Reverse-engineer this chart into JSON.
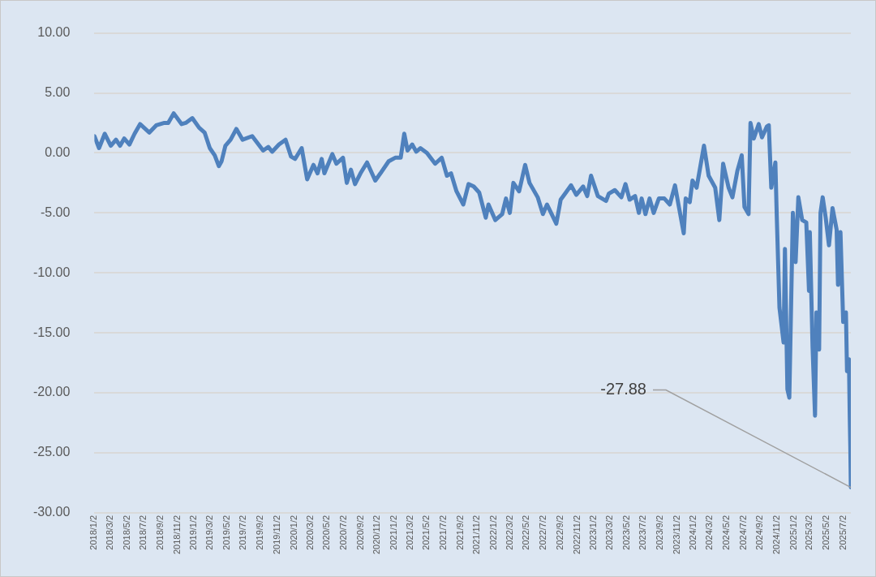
{
  "chart_data": {
    "type": "line",
    "grid": "y",
    "x": [
      "2018-01-02",
      "2018-01-19",
      "2018-02-09",
      "2018-03-03",
      "2018-03-22",
      "2018-04-06",
      "2018-04-21",
      "2018-05-10",
      "2018-05-29",
      "2018-06-18",
      "2018-07-22",
      "2018-08-16",
      "2018-09-15",
      "2018-09-29",
      "2018-10-19",
      "2018-11-17",
      "2018-12-02",
      "2018-12-26",
      "2019-01-20",
      "2019-02-09",
      "2019-02-28",
      "2019-03-18",
      "2019-04-02",
      "2019-04-12",
      "2019-04-26",
      "2019-05-15",
      "2019-06-05",
      "2019-06-28",
      "2019-08-02",
      "2019-09-11",
      "2019-09-30",
      "2019-10-14",
      "2019-11-08",
      "2019-12-02",
      "2019-12-22",
      "2020-01-06",
      "2020-01-30",
      "2020-02-19",
      "2020-03-13",
      "2020-03-28",
      "2020-04-12",
      "2020-04-22",
      "2020-05-21",
      "2020-06-05",
      "2020-06-29",
      "2020-07-13",
      "2020-07-28",
      "2020-08-12",
      "2020-09-01",
      "2020-09-25",
      "2020-10-25",
      "2020-11-13",
      "2020-12-13",
      "2021-01-06",
      "2021-01-26",
      "2021-02-08",
      "2021-02-20",
      "2021-03-09",
      "2021-03-24",
      "2021-04-08",
      "2021-05-02",
      "2021-06-01",
      "2021-06-25",
      "2021-07-14",
      "2021-07-29",
      "2021-08-18",
      "2021-09-12",
      "2021-10-01",
      "2021-10-20",
      "2021-11-09",
      "2021-12-03",
      "2021-12-13",
      "2022-01-07",
      "2022-02-01",
      "2022-02-15",
      "2022-03-01",
      "2022-03-14",
      "2022-04-04",
      "2022-04-26",
      "2022-05-12",
      "2022-06-11",
      "2022-06-30",
      "2022-07-15",
      "2022-08-18",
      "2022-09-03",
      "2022-09-22",
      "2022-10-11",
      "2022-10-30",
      "2022-11-24",
      "2022-12-09",
      "2022-12-23",
      "2023-01-17",
      "2023-02-16",
      "2023-02-26",
      "2023-03-20",
      "2023-04-13",
      "2023-04-28",
      "2023-05-13",
      "2023-06-02",
      "2023-06-16",
      "2023-06-26",
      "2023-07-10",
      "2023-07-25",
      "2023-08-09",
      "2023-08-28",
      "2023-09-17",
      "2023-10-07",
      "2023-10-26",
      "2023-11-10",
      "2023-11-27",
      "2023-12-04",
      "2023-12-19",
      "2023-12-29",
      "2024-01-13",
      "2024-02-09",
      "2024-02-26",
      "2024-03-21",
      "2024-04-05",
      "2024-04-19",
      "2024-05-09",
      "2024-05-23",
      "2024-06-10",
      "2024-06-26",
      "2024-07-06",
      "2024-07-21",
      "2024-07-28",
      "2024-08-09",
      "2024-08-27",
      "2024-09-08",
      "2024-09-26",
      "2024-10-03",
      "2024-10-12",
      "2024-10-27",
      "2024-11-01",
      "2024-11-11",
      "2024-11-26",
      "2024-12-01",
      "2024-12-10",
      "2024-12-17",
      "2024-12-30",
      "2025-01-09",
      "2025-01-19",
      "2025-02-02",
      "2025-02-17",
      "2025-02-27",
      "2025-03-02",
      "2025-03-12",
      "2025-03-21",
      "2025-03-26",
      "2025-04-05",
      "2025-04-10",
      "2025-04-18",
      "2025-04-29",
      "2025-05-11",
      "2025-05-24",
      "2025-06-08",
      "2025-06-13",
      "2025-06-22",
      "2025-07-02",
      "2025-07-12",
      "2025-07-16",
      "2025-07-23",
      "2025-07-26",
      "2025-07-28",
      "2025-07-30"
    ],
    "series": [
      {
        "color": "#4f81bd",
        "values": [
          1.4,
          0.4,
          1.6,
          0.6,
          1.1,
          0.6,
          1.2,
          0.7,
          1.6,
          2.4,
          1.7,
          2.3,
          2.5,
          2.5,
          3.3,
          2.4,
          2.5,
          2.9,
          2.1,
          1.7,
          0.4,
          -0.2,
          -1.1,
          -0.7,
          0.6,
          1.1,
          2.0,
          1.1,
          1.4,
          0.2,
          0.5,
          0.1,
          0.7,
          1.1,
          -0.3,
          -0.5,
          0.4,
          -2.2,
          -1.0,
          -1.7,
          -0.5,
          -1.7,
          -0.1,
          -0.9,
          -0.4,
          -2.5,
          -1.4,
          -2.6,
          -1.7,
          -0.8,
          -2.3,
          -1.7,
          -0.7,
          -0.4,
          -0.4,
          1.6,
          0.2,
          0.7,
          0.1,
          0.4,
          0.0,
          -0.9,
          -0.4,
          -1.9,
          -1.7,
          -3.2,
          -4.3,
          -2.6,
          -2.8,
          -3.3,
          -5.4,
          -4.3,
          -5.6,
          -5.1,
          -3.8,
          -5.0,
          -2.5,
          -3.2,
          -1.0,
          -2.5,
          -3.7,
          -5.1,
          -4.3,
          -5.9,
          -3.9,
          -3.3,
          -2.7,
          -3.5,
          -2.8,
          -3.6,
          -1.9,
          -3.6,
          -4.0,
          -3.4,
          -3.1,
          -3.7,
          -2.6,
          -3.9,
          -3.6,
          -5.0,
          -3.8,
          -5.1,
          -3.8,
          -5.0,
          -3.8,
          -3.8,
          -4.3,
          -2.7,
          -4.6,
          -6.7,
          -3.8,
          -4.1,
          -2.3,
          -2.9,
          0.6,
          -1.9,
          -2.9,
          -5.6,
          -0.9,
          -2.9,
          -3.7,
          -1.5,
          -0.2,
          -4.5,
          -5.1,
          2.5,
          1.2,
          2.4,
          1.3,
          2.2,
          2.3,
          -2.9,
          -0.8,
          -5.2,
          -12.9,
          -15.8,
          -8.0,
          -19.7,
          -20.4,
          -5.0,
          -9.1,
          -3.7,
          -5.6,
          -5.8,
          -11.5,
          -6.6,
          -16.2,
          -21.9,
          -13.3,
          -16.4,
          -5.0,
          -3.7,
          -5.4,
          -7.7,
          -4.6,
          -6.4,
          -11.0,
          -6.6,
          -14.1,
          -13.3,
          -18.2,
          -17.2,
          -22.0,
          -24.5,
          -27.88
        ]
      }
    ],
    "xlim": [
      "2018-01-02",
      "2025-07-30"
    ],
    "xticks": [
      {
        "value": "2018-01-02",
        "label": "2018/1/2"
      },
      {
        "value": "2018-03-02",
        "label": "2018/3/2"
      },
      {
        "value": "2018-05-02",
        "label": "2018/5/2"
      },
      {
        "value": "2018-07-02",
        "label": "2018/7/2"
      },
      {
        "value": "2018-09-02",
        "label": "2018/9/2"
      },
      {
        "value": "2018-11-02",
        "label": "2018/11/2"
      },
      {
        "value": "2019-01-02",
        "label": "2019/1/2"
      },
      {
        "value": "2019-03-02",
        "label": "2019/3/2"
      },
      {
        "value": "2019-05-02",
        "label": "2019/5/2"
      },
      {
        "value": "2019-07-02",
        "label": "2019/7/2"
      },
      {
        "value": "2019-09-02",
        "label": "2019/9/2"
      },
      {
        "value": "2019-11-02",
        "label": "2019/11/2"
      },
      {
        "value": "2020-01-02",
        "label": "2020/1/2"
      },
      {
        "value": "2020-03-02",
        "label": "2020/3/2"
      },
      {
        "value": "2020-05-02",
        "label": "2020/5/2"
      },
      {
        "value": "2020-07-02",
        "label": "2020/7/2"
      },
      {
        "value": "2020-09-02",
        "label": "2020/9/2"
      },
      {
        "value": "2020-11-02",
        "label": "2020/11/2"
      },
      {
        "value": "2021-01-02",
        "label": "2021/1/2"
      },
      {
        "value": "2021-03-02",
        "label": "2021/3/2"
      },
      {
        "value": "2021-05-02",
        "label": "2021/5/2"
      },
      {
        "value": "2021-07-02",
        "label": "2021/7/2"
      },
      {
        "value": "2021-09-02",
        "label": "2021/9/2"
      },
      {
        "value": "2021-11-02",
        "label": "2021/11/2"
      },
      {
        "value": "2022-01-02",
        "label": "2022/1/2"
      },
      {
        "value": "2022-03-02",
        "label": "2022/3/2"
      },
      {
        "value": "2022-05-02",
        "label": "2022/5/2"
      },
      {
        "value": "2022-07-02",
        "label": "2022/7/2"
      },
      {
        "value": "2022-09-02",
        "label": "2022/9/2"
      },
      {
        "value": "2022-11-02",
        "label": "2022/11/2"
      },
      {
        "value": "2023-01-02",
        "label": "2023/1/2"
      },
      {
        "value": "2023-03-02",
        "label": "2023/3/2"
      },
      {
        "value": "2023-05-02",
        "label": "2023/5/2"
      },
      {
        "value": "2023-07-02",
        "label": "2023/7/2"
      },
      {
        "value": "2023-09-02",
        "label": "2023/9/2"
      },
      {
        "value": "2023-11-02",
        "label": "2023/11/2"
      },
      {
        "value": "2024-01-02",
        "label": "2024/1/2"
      },
      {
        "value": "2024-03-02",
        "label": "2024/3/2"
      },
      {
        "value": "2024-05-02",
        "label": "2024/5/2"
      },
      {
        "value": "2024-07-02",
        "label": "2024/7/2"
      },
      {
        "value": "2024-09-02",
        "label": "2024/9/2"
      },
      {
        "value": "2024-11-02",
        "label": "2024/11/2"
      },
      {
        "value": "2025-01-02",
        "label": "2025/1/2"
      },
      {
        "value": "2025-03-02",
        "label": "2025/3/2"
      },
      {
        "value": "2025-05-02",
        "label": "2025/5/2"
      },
      {
        "value": "2025-07-02",
        "label": "2025/7/2"
      }
    ],
    "ylim": [
      -30,
      10
    ],
    "yticks": [
      {
        "value": 10,
        "label": "10.00"
      },
      {
        "value": 5,
        "label": "5.00"
      },
      {
        "value": 0,
        "label": "0.00"
      },
      {
        "value": -5,
        "label": "-5.00"
      },
      {
        "value": -10,
        "label": "-10.00"
      },
      {
        "value": -15,
        "label": "-15.00"
      },
      {
        "value": -20,
        "label": "-20.00"
      },
      {
        "value": -25,
        "label": "-25.00"
      },
      {
        "value": -30,
        "label": "-30.00"
      }
    ],
    "annotations": [
      {
        "text": "-27.88",
        "x": "2025-07-30",
        "y": -27.88
      }
    ]
  }
}
